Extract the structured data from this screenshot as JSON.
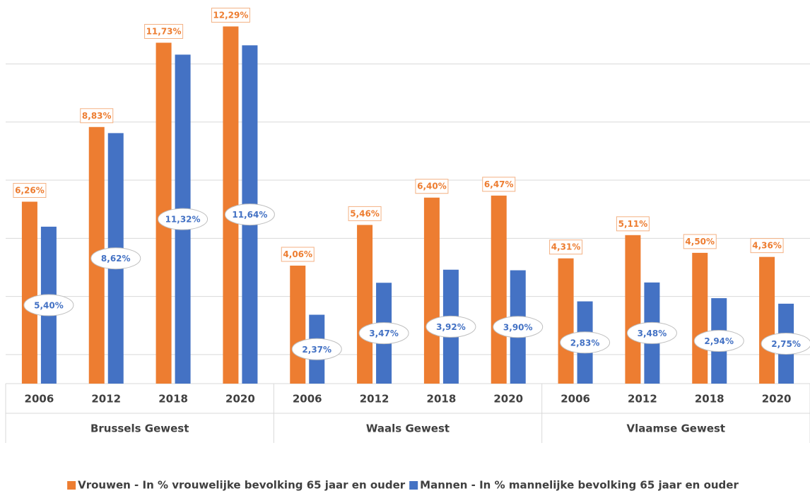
{
  "chart_data": {
    "type": "bar",
    "groups": [
      {
        "name": "Brussels Gewest",
        "categories": [
          "2006",
          "2012",
          "2018",
          "2020"
        ]
      },
      {
        "name": "Waals Gewest",
        "categories": [
          "2006",
          "2012",
          "2018",
          "2020"
        ]
      },
      {
        "name": "Vlaamse Gewest",
        "categories": [
          "2006",
          "2012",
          "2018",
          "2020"
        ]
      }
    ],
    "series": [
      {
        "name": "Vrouwen - In % vrouwelijke bevolking 65 jaar en ouder",
        "color": "#ED7D31",
        "values": [
          6.26,
          8.83,
          11.73,
          12.29,
          4.06,
          5.46,
          6.4,
          6.47,
          4.31,
          5.11,
          4.5,
          4.36
        ],
        "value_labels": [
          "6,26%",
          "8,83%",
          "11,73%",
          "12,29%",
          "4,06%",
          "5,46%",
          "6,40%",
          "6,47%",
          "4,31%",
          "5,11%",
          "4,50%",
          "4,36%"
        ]
      },
      {
        "name": "Mannen - In % mannelijke bevolking 65 jaar en ouder",
        "color": "#4472C4",
        "values": [
          5.4,
          8.62,
          11.32,
          11.64,
          2.37,
          3.47,
          3.92,
          3.9,
          2.83,
          3.48,
          2.94,
          2.75
        ],
        "value_labels": [
          "5,40%",
          "8,62%",
          "11,32%",
          "11,64%",
          "2,37%",
          "3,47%",
          "3,92%",
          "3,90%",
          "2,83%",
          "3,48%",
          "2,94%",
          "2,75%"
        ]
      }
    ],
    "ylim": [
      0,
      13.2
    ],
    "yticks": [
      1,
      3,
      5,
      7,
      9,
      11
    ],
    "grid": true
  }
}
